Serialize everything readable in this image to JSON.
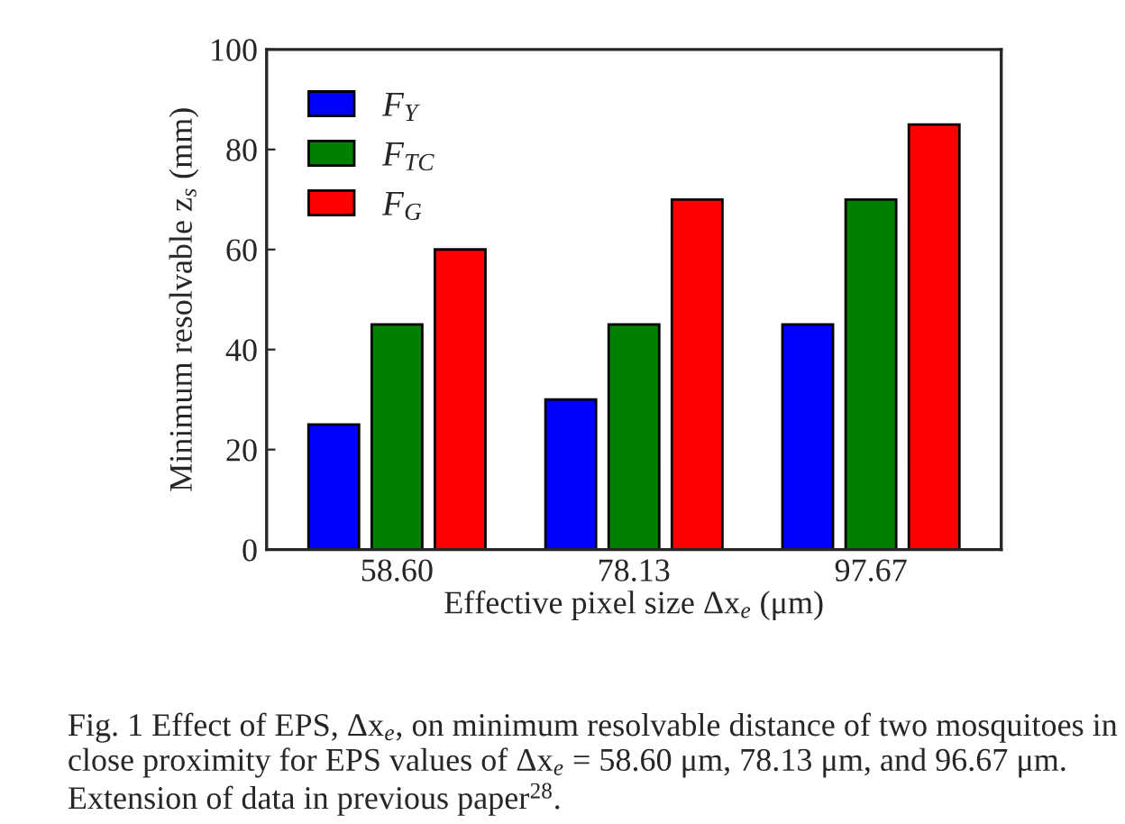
{
  "chart_data": {
    "type": "bar",
    "xlabel": "Effective pixel size Δx$_{e}$ (μm)",
    "ylabel": "Minimum resolvable z$_{s}$ (mm)",
    "categories": [
      "58.60",
      "78.13",
      "97.67"
    ],
    "series": [
      {
        "name": "F$_{Y}$",
        "color": "#0000ff",
        "values": [
          25,
          30,
          45
        ]
      },
      {
        "name": "F$_{TC}$",
        "color": "#008000",
        "values": [
          45,
          45,
          70
        ]
      },
      {
        "name": "F$_{G}$",
        "color": "#ff0000",
        "values": [
          60,
          70,
          85
        ]
      }
    ],
    "ylim": [
      0,
      100
    ],
    "yticks": [
      0,
      20,
      40,
      60,
      80,
      100
    ],
    "grid": false,
    "legend": "top left",
    "annotations": [
      "Fig. 1 Effect of EPS, Δx$_{e}$, on minimum resolvable distance of two mosquitoes in close proximity for EPS values of Δx$_{e}$ = 58.60 μm, 78.13 μm, and 96.67 μm. Extension of data in previous paper$^{28}$."
    ]
  }
}
